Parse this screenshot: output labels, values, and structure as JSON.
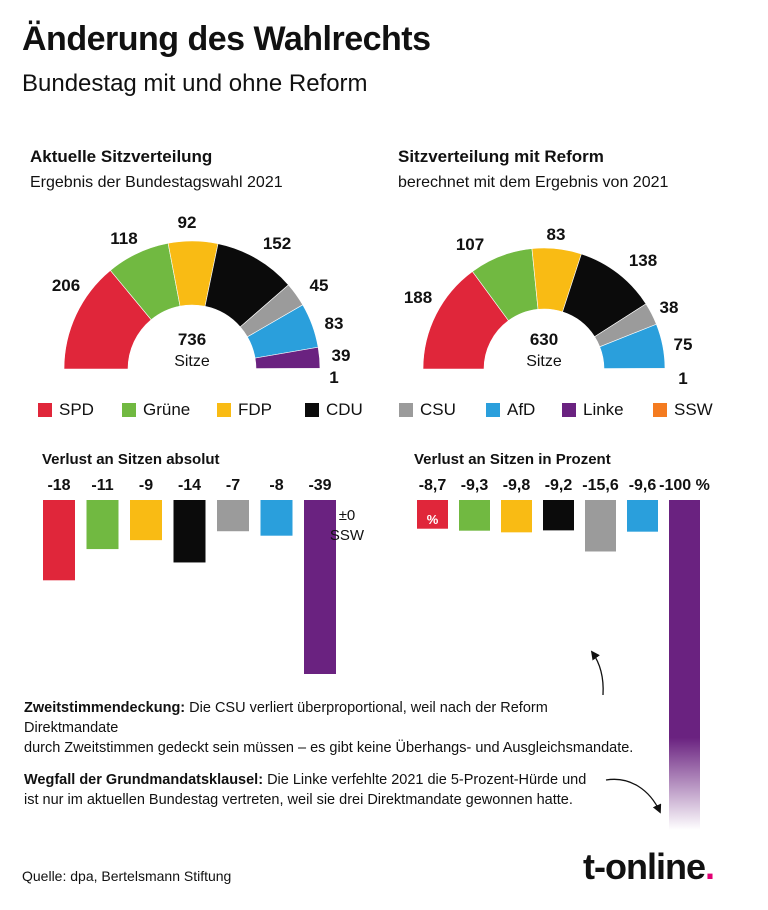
{
  "header": {
    "title": "Änderung des Wahlrechts",
    "subtitle": "Bundestag mit und ohne Reform"
  },
  "colors": {
    "SPD": "#e0263a",
    "Grüne": "#71b941",
    "FDP": "#f9bb14",
    "CDU": "#0b0b0b",
    "CSU": "#9b9b9b",
    "AfD": "#2a9fdc",
    "Linke": "#6a2280",
    "SSW": "#f47b20"
  },
  "chart_data": [
    {
      "type": "pie",
      "variant": "half-donut",
      "title": "Aktuelle Sitzverteilung",
      "subtitle": "Ergebnis der Bundestagswahl 2021",
      "center_value": "736",
      "center_label": "Sitze",
      "categories": [
        "SPD",
        "Grüne",
        "FDP",
        "CDU",
        "CSU",
        "AfD",
        "Linke",
        "SSW"
      ],
      "values": [
        206,
        118,
        92,
        152,
        45,
        83,
        39,
        1
      ]
    },
    {
      "type": "pie",
      "variant": "half-donut",
      "title": "Sitzverteilung mit Reform",
      "subtitle": "berechnet mit dem Ergebnis von 2021",
      "center_value": "630",
      "center_label": "Sitze",
      "categories": [
        "SPD",
        "Grüne",
        "FDP",
        "CDU",
        "CSU",
        "AfD",
        "Linke",
        "SSW"
      ],
      "values": [
        188,
        107,
        83,
        138,
        38,
        75,
        0,
        1
      ]
    },
    {
      "type": "bar",
      "title": "Verlust an Sitzen absolut",
      "categories": [
        "SPD",
        "Grüne",
        "FDP",
        "CDU",
        "CSU",
        "AfD",
        "Linke"
      ],
      "values": [
        -18,
        -11,
        -9,
        -14,
        -7,
        -8,
        -39
      ],
      "labels": [
        "-18",
        "-11",
        "-9",
        "-14",
        "-7",
        "-8",
        "-39"
      ],
      "annotation": {
        "value": "±0",
        "label": "SSW"
      }
    },
    {
      "type": "bar",
      "title": "Verlust an Sitzen in Prozent",
      "categories": [
        "SPD",
        "Grüne",
        "FDP",
        "CDU",
        "CSU",
        "AfD",
        "Linke"
      ],
      "values": [
        -8.7,
        -9.3,
        -9.8,
        -9.2,
        -15.6,
        -9.6,
        -100
      ],
      "labels": [
        "-8,7",
        "-9,3",
        "-9,8",
        "-9,2",
        "-15,6",
        "-9,6",
        "-100 %"
      ],
      "unit_label": "%"
    }
  ],
  "legend": [
    "SPD",
    "Grüne",
    "FDP",
    "CDU",
    "CSU",
    "AfD",
    "Linke",
    "SSW"
  ],
  "notes": {
    "note1_bold": "Zweitstimmendeckung:",
    "note1_line1": " Die CSU verliert überproportional, weil nach der Reform Direktmandate",
    "note1_line2": "durch Zweitstimmen gedeckt sein müssen – es gibt keine Überhangs- und Ausgleichsmandate.",
    "note2_bold": "Wegfall der Grundmandatsklausel:",
    "note2_line1": " Die Linke verfehlte 2021 die 5-Prozent-Hürde und",
    "note2_line2": "ist nur im aktuellen Bundestag vertreten, weil sie drei Direktmandate gewonnen hatte."
  },
  "footer": {
    "source": "Quelle: dpa, Bertelsmann Stiftung",
    "logo": "t-online",
    "logo_dot": "."
  }
}
